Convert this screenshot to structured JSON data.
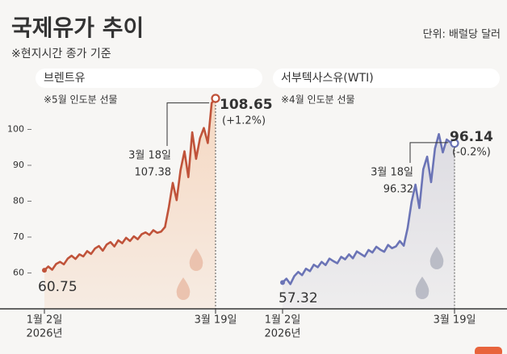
{
  "title": "국제유가 추이",
  "subtitle": "※현지시간 종가 기준",
  "unit": "단위: 배럴당 달러",
  "chart_data": [
    {
      "type": "area",
      "title": "브렌트유",
      "note": "※5월 인도분 선물",
      "color": "#c0533a",
      "fill": "#f5d8c2",
      "categories": [
        "1월 2일",
        null,
        null,
        null,
        null,
        null,
        null,
        null,
        null,
        null,
        null,
        null,
        null,
        null,
        null,
        null,
        null,
        null,
        null,
        null,
        null,
        null,
        null,
        null,
        null,
        null,
        null,
        null,
        null,
        null,
        null,
        null,
        null,
        null,
        null,
        null,
        null,
        null,
        null,
        null,
        null,
        null,
        null,
        null,
        "3월 19일"
      ],
      "x_note": "2026년",
      "values": [
        60.75,
        61.8,
        60.9,
        62.5,
        63.1,
        62.4,
        64.0,
        64.8,
        63.9,
        65.2,
        64.6,
        66.1,
        65.3,
        66.8,
        67.5,
        66.2,
        67.9,
        68.6,
        67.4,
        69.1,
        68.3,
        69.8,
        68.9,
        70.2,
        69.4,
        70.8,
        71.3,
        70.6,
        71.9,
        71.2,
        71.5,
        72.8,
        78.4,
        85.1,
        80.3,
        88.6,
        93.9,
        86.7,
        99.2,
        91.8,
        97.5,
        100.4,
        96.2,
        107.38,
        108.65
      ],
      "change_label": "(+1.2%)",
      "annotation_date": "3월 18일",
      "ylim": [
        50,
        110
      ],
      "yticks": [
        60,
        70,
        80,
        90,
        100
      ]
    },
    {
      "type": "area",
      "title": "서부텍사스유(WTI)",
      "note": "※4월 인도분 선물",
      "color": "#6b74b6",
      "fill": "#dddce2",
      "categories": [
        "1월 2일",
        null,
        null,
        null,
        null,
        null,
        null,
        null,
        null,
        null,
        null,
        null,
        null,
        null,
        null,
        null,
        null,
        null,
        null,
        null,
        null,
        null,
        null,
        null,
        null,
        null,
        null,
        null,
        null,
        null,
        null,
        null,
        null,
        null,
        null,
        null,
        null,
        null,
        null,
        null,
        null,
        null,
        null,
        null,
        "3월 19일"
      ],
      "x_note": "2026년",
      "values": [
        57.32,
        58.4,
        56.9,
        59.1,
        60.3,
        59.4,
        61.2,
        60.5,
        62.3,
        61.6,
        63.1,
        62.2,
        64.0,
        63.3,
        62.7,
        64.5,
        63.8,
        65.2,
        64.1,
        66.0,
        65.3,
        64.6,
        66.4,
        65.7,
        67.3,
        66.5,
        65.9,
        67.8,
        66.9,
        67.4,
        68.9,
        67.6,
        72.5,
        79.8,
        84.6,
        78.1,
        88.9,
        92.4,
        85.3,
        94.7,
        98.7,
        93.6,
        97.2,
        96.32,
        96.14
      ],
      "change_label": "(-0.2%)",
      "annotation_date": "3월 18일",
      "ylim": [
        50,
        110
      ]
    }
  ]
}
